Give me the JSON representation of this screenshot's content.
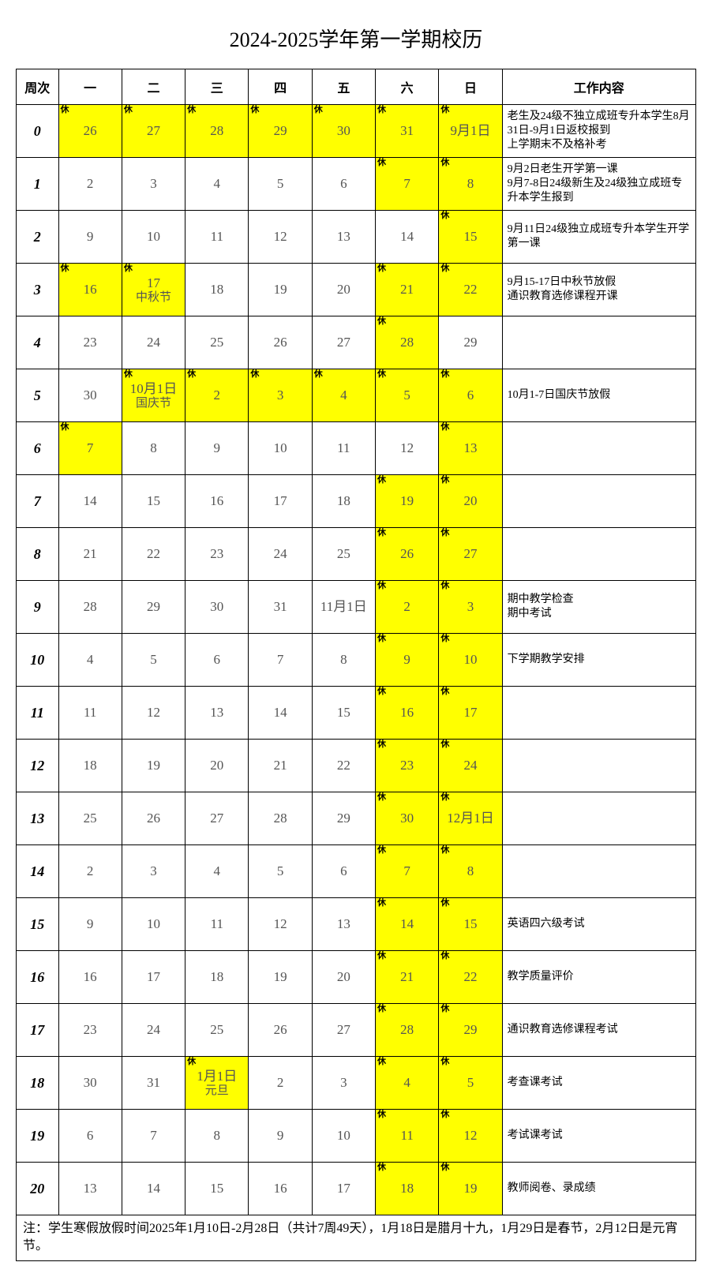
{
  "title": "2024-2025学年第一学期校历",
  "headers": [
    "周次",
    "一",
    "二",
    "三",
    "四",
    "五",
    "六",
    "日",
    "工作内容"
  ],
  "rest_mark": "休",
  "rows": [
    {
      "week": "0",
      "days": [
        {
          "t": "26",
          "h": true,
          "r": true
        },
        {
          "t": "27",
          "h": true,
          "r": true
        },
        {
          "t": "28",
          "h": true,
          "r": true
        },
        {
          "t": "29",
          "h": true,
          "r": true
        },
        {
          "t": "30",
          "h": true,
          "r": true
        },
        {
          "t": "31",
          "h": true,
          "r": true
        },
        {
          "t": "9月1日",
          "h": true,
          "r": true
        }
      ],
      "note": "老生及24级不独立成班专升本学生8月31日-9月1日返校报到\n上学期末不及格补考"
    },
    {
      "week": "1",
      "days": [
        {
          "t": "2"
        },
        {
          "t": "3"
        },
        {
          "t": "4"
        },
        {
          "t": "5"
        },
        {
          "t": "6"
        },
        {
          "t": "7",
          "h": true,
          "r": true
        },
        {
          "t": "8",
          "h": true,
          "r": true
        }
      ],
      "note": "9月2日老生开学第一课\n9月7-8日24级新生及24级独立成班专升本学生报到"
    },
    {
      "week": "2",
      "days": [
        {
          "t": "9"
        },
        {
          "t": "10"
        },
        {
          "t": "11"
        },
        {
          "t": "12"
        },
        {
          "t": "13"
        },
        {
          "t": "14"
        },
        {
          "t": "15",
          "h": true,
          "r": true
        }
      ],
      "note": "9月11日24级独立成班专升本学生开学第一课"
    },
    {
      "week": "3",
      "days": [
        {
          "t": "16",
          "h": true,
          "r": true
        },
        {
          "t": "17",
          "sub": "中秋节",
          "h": true,
          "r": true
        },
        {
          "t": "18"
        },
        {
          "t": "19"
        },
        {
          "t": "20"
        },
        {
          "t": "21",
          "h": true,
          "r": true
        },
        {
          "t": "22",
          "h": true,
          "r": true
        }
      ],
      "note": "9月15-17日中秋节放假\n通识教育选修课程开课"
    },
    {
      "week": "4",
      "days": [
        {
          "t": "23"
        },
        {
          "t": "24"
        },
        {
          "t": "25"
        },
        {
          "t": "26"
        },
        {
          "t": "27"
        },
        {
          "t": "28",
          "h": true,
          "r": true
        },
        {
          "t": "29"
        }
      ],
      "note": ""
    },
    {
      "week": "5",
      "days": [
        {
          "t": "30"
        },
        {
          "t": "10月1日",
          "sub": "国庆节",
          "h": true,
          "r": true
        },
        {
          "t": "2",
          "h": true,
          "r": true
        },
        {
          "t": "3",
          "h": true,
          "r": true
        },
        {
          "t": "4",
          "h": true,
          "r": true
        },
        {
          "t": "5",
          "h": true,
          "r": true
        },
        {
          "t": "6",
          "h": true,
          "r": true
        }
      ],
      "note": "10月1-7日国庆节放假"
    },
    {
      "week": "6",
      "days": [
        {
          "t": "7",
          "h": true,
          "r": true
        },
        {
          "t": "8"
        },
        {
          "t": "9"
        },
        {
          "t": "10"
        },
        {
          "t": "11"
        },
        {
          "t": "12"
        },
        {
          "t": "13",
          "h": true,
          "r": true
        }
      ],
      "note": ""
    },
    {
      "week": "7",
      "days": [
        {
          "t": "14"
        },
        {
          "t": "15"
        },
        {
          "t": "16"
        },
        {
          "t": "17"
        },
        {
          "t": "18"
        },
        {
          "t": "19",
          "h": true,
          "r": true
        },
        {
          "t": "20",
          "h": true,
          "r": true
        }
      ],
      "note": ""
    },
    {
      "week": "8",
      "days": [
        {
          "t": "21"
        },
        {
          "t": "22"
        },
        {
          "t": "23"
        },
        {
          "t": "24"
        },
        {
          "t": "25"
        },
        {
          "t": "26",
          "h": true,
          "r": true
        },
        {
          "t": "27",
          "h": true,
          "r": true
        }
      ],
      "note": ""
    },
    {
      "week": "9",
      "days": [
        {
          "t": "28"
        },
        {
          "t": "29"
        },
        {
          "t": "30"
        },
        {
          "t": "31"
        },
        {
          "t": "11月1日"
        },
        {
          "t": "2",
          "h": true,
          "r": true
        },
        {
          "t": "3",
          "h": true,
          "r": true
        }
      ],
      "note": "期中教学检查\n期中考试"
    },
    {
      "week": "10",
      "days": [
        {
          "t": "4"
        },
        {
          "t": "5"
        },
        {
          "t": "6"
        },
        {
          "t": "7"
        },
        {
          "t": "8"
        },
        {
          "t": "9",
          "h": true,
          "r": true
        },
        {
          "t": "10",
          "h": true,
          "r": true
        }
      ],
      "note": "下学期教学安排"
    },
    {
      "week": "11",
      "days": [
        {
          "t": "11"
        },
        {
          "t": "12"
        },
        {
          "t": "13"
        },
        {
          "t": "14"
        },
        {
          "t": "15"
        },
        {
          "t": "16",
          "h": true,
          "r": true
        },
        {
          "t": "17",
          "h": true,
          "r": true
        }
      ],
      "note": ""
    },
    {
      "week": "12",
      "days": [
        {
          "t": "18"
        },
        {
          "t": "19"
        },
        {
          "t": "20"
        },
        {
          "t": "21"
        },
        {
          "t": "22"
        },
        {
          "t": "23",
          "h": true,
          "r": true
        },
        {
          "t": "24",
          "h": true,
          "r": true
        }
      ],
      "note": ""
    },
    {
      "week": "13",
      "days": [
        {
          "t": "25"
        },
        {
          "t": "26"
        },
        {
          "t": "27"
        },
        {
          "t": "28"
        },
        {
          "t": "29"
        },
        {
          "t": "30",
          "h": true,
          "r": true
        },
        {
          "t": "12月1日",
          "h": true,
          "r": true
        }
      ],
      "note": ""
    },
    {
      "week": "14",
      "days": [
        {
          "t": "2"
        },
        {
          "t": "3"
        },
        {
          "t": "4"
        },
        {
          "t": "5"
        },
        {
          "t": "6"
        },
        {
          "t": "7",
          "h": true,
          "r": true
        },
        {
          "t": "8",
          "h": true,
          "r": true
        }
      ],
      "note": ""
    },
    {
      "week": "15",
      "days": [
        {
          "t": "9"
        },
        {
          "t": "10"
        },
        {
          "t": "11"
        },
        {
          "t": "12"
        },
        {
          "t": "13"
        },
        {
          "t": "14",
          "h": true,
          "r": true
        },
        {
          "t": "15",
          "h": true,
          "r": true
        }
      ],
      "note": "英语四六级考试"
    },
    {
      "week": "16",
      "days": [
        {
          "t": "16"
        },
        {
          "t": "17"
        },
        {
          "t": "18"
        },
        {
          "t": "19"
        },
        {
          "t": "20"
        },
        {
          "t": "21",
          "h": true,
          "r": true
        },
        {
          "t": "22",
          "h": true,
          "r": true
        }
      ],
      "note": "教学质量评价"
    },
    {
      "week": "17",
      "days": [
        {
          "t": "23"
        },
        {
          "t": "24"
        },
        {
          "t": "25"
        },
        {
          "t": "26"
        },
        {
          "t": "27"
        },
        {
          "t": "28",
          "h": true,
          "r": true
        },
        {
          "t": "29",
          "h": true,
          "r": true
        }
      ],
      "note": "通识教育选修课程考试"
    },
    {
      "week": "18",
      "days": [
        {
          "t": "30"
        },
        {
          "t": "31"
        },
        {
          "t": "1月1日",
          "sub": "元旦",
          "h": true,
          "r": true
        },
        {
          "t": "2"
        },
        {
          "t": "3"
        },
        {
          "t": "4",
          "h": true,
          "r": true
        },
        {
          "t": "5",
          "h": true,
          "r": true
        }
      ],
      "note": "考查课考试"
    },
    {
      "week": "19",
      "days": [
        {
          "t": "6"
        },
        {
          "t": "7"
        },
        {
          "t": "8"
        },
        {
          "t": "9"
        },
        {
          "t": "10"
        },
        {
          "t": "11",
          "h": true,
          "r": true
        },
        {
          "t": "12",
          "h": true,
          "r": true
        }
      ],
      "note": "考试课考试"
    },
    {
      "week": "20",
      "days": [
        {
          "t": "13"
        },
        {
          "t": "14"
        },
        {
          "t": "15"
        },
        {
          "t": "16"
        },
        {
          "t": "17"
        },
        {
          "t": "18",
          "h": true,
          "r": true
        },
        {
          "t": "19",
          "h": true,
          "r": true
        }
      ],
      "note": "教师阅卷、录成绩"
    }
  ],
  "footnote": "注：学生寒假放假时间2025年1月10日-2月28日（共计7周49天），1月18日是腊月十九，1月29日是春节，2月12日是元宵节。"
}
